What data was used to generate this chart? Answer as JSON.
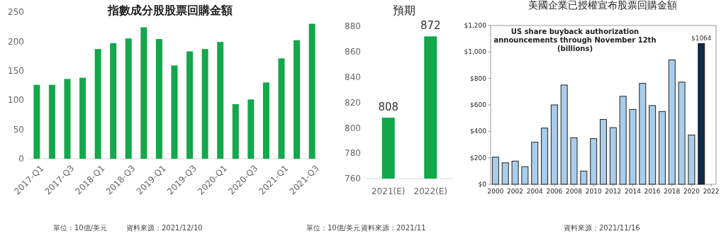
{
  "chart_data": [
    {
      "type": "bar",
      "title": "指數成分股股票回購金額",
      "categories": [
        "2017-Q1",
        null,
        "2017-Q3",
        null,
        "2018-Q1",
        null,
        "2018-Q3",
        null,
        "2019-Q1",
        null,
        "2019-Q3",
        null,
        "2020-Q1",
        null,
        "2020-Q3",
        null,
        "2021-Q1",
        null,
        "2021-Q3"
      ],
      "values": [
        126,
        126,
        136,
        138,
        187,
        197,
        205,
        224,
        204,
        159,
        183,
        187,
        199,
        93,
        101,
        130,
        171,
        202,
        230
      ],
      "color": "#12a84b",
      "ylim": [
        0,
        250
      ],
      "yticks": [
        0,
        50,
        100,
        150,
        200,
        250
      ],
      "annotations": [
        "單位：10億/美元",
        "資料來源：2021/12/10"
      ]
    },
    {
      "type": "bar",
      "title": "預期",
      "categories": [
        "2021(E)",
        "2022(E)"
      ],
      "values": [
        808,
        872
      ],
      "color": "#12a84b",
      "ylim": [
        760,
        880
      ],
      "yticks": [
        760,
        780,
        800,
        820,
        840,
        860,
        880
      ],
      "data_labels": true,
      "annotations": [
        "單位：10億/美元",
        "資料來源：2021/11"
      ]
    },
    {
      "type": "bar",
      "title": "美國企業已授權宣布股票回購金額",
      "subtitle": "US share buyback authorization announcements through November 12th (billions)",
      "x": [
        2000,
        2001,
        2002,
        2003,
        2004,
        2005,
        2006,
        2007,
        2008,
        2009,
        2010,
        2011,
        2012,
        2013,
        2014,
        2015,
        2016,
        2017,
        2018,
        2019,
        2020,
        2021
      ],
      "values": [
        205,
        162,
        175,
        133,
        318,
        425,
        600,
        750,
        352,
        100,
        345,
        490,
        428,
        665,
        566,
        763,
        595,
        550,
        940,
        772,
        372,
        1064
      ],
      "colors": [
        "#a9cdea",
        "#a9cdea",
        "#a9cdea",
        "#a9cdea",
        "#a9cdea",
        "#a9cdea",
        "#a9cdea",
        "#a9cdea",
        "#a9cdea",
        "#a9cdea",
        "#a9cdea",
        "#a9cdea",
        "#a9cdea",
        "#a9cdea",
        "#a9cdea",
        "#a9cdea",
        "#a9cdea",
        "#a9cdea",
        "#a9cdea",
        "#a9cdea",
        "#a9cdea",
        "#0b2b4c"
      ],
      "value_labels": [
        null,
        null,
        null,
        null,
        null,
        null,
        null,
        null,
        null,
        null,
        null,
        null,
        null,
        null,
        null,
        null,
        null,
        null,
        null,
        null,
        null,
        "$1064"
      ],
      "xlim": [
        1999.5,
        2022.5
      ],
      "xticks": [
        2000,
        2002,
        2004,
        2006,
        2008,
        2010,
        2012,
        2014,
        2016,
        2018,
        2020,
        2022
      ],
      "ylim": [
        0,
        1200
      ],
      "yticks": [
        {
          "value": 0,
          "label": "$0"
        },
        {
          "value": 200,
          "label": "$200"
        },
        {
          "value": 400,
          "label": "$400"
        },
        {
          "value": 600,
          "label": "$600"
        },
        {
          "value": 800,
          "label": "$800"
        },
        {
          "value": 1000,
          "label": "$1,000"
        },
        {
          "value": 1200,
          "label": "$1,200"
        }
      ],
      "annotations": [
        "資料來源：2021/11/16"
      ]
    }
  ]
}
